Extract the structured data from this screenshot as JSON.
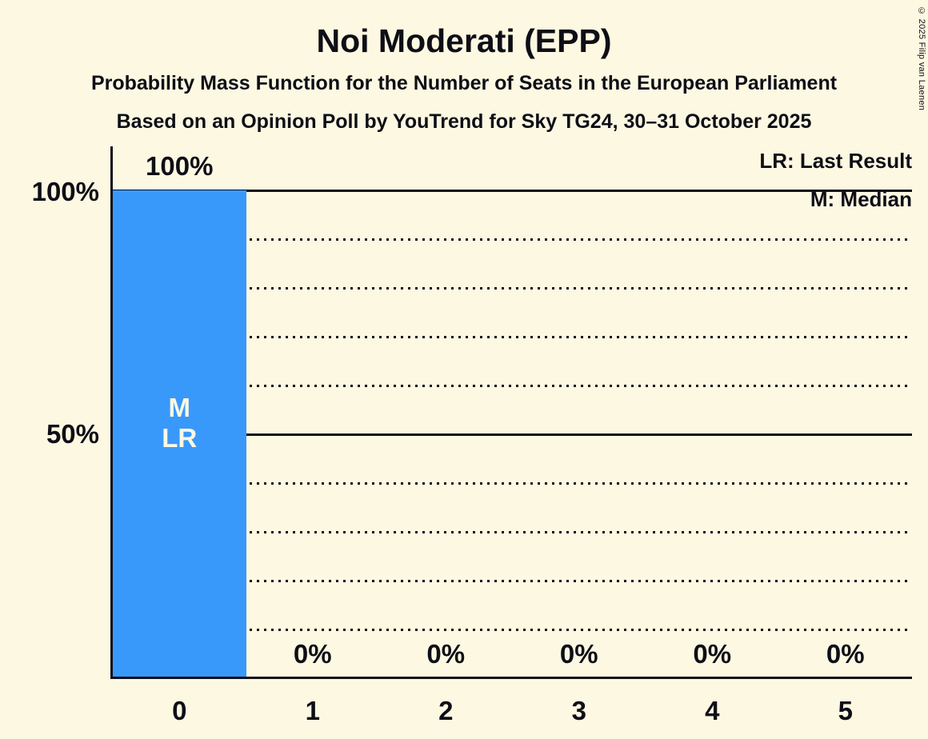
{
  "header": {
    "title": "Noi Moderati (EPP)",
    "subtitle1": "Probability Mass Function for the Number of Seats in the European Parliament",
    "subtitle2": "Based on an Opinion Poll by YouTrend for Sky TG24, 30–31 October 2025"
  },
  "copyright": "© 2025 Filip van Laenen",
  "legend": {
    "lr_label": "LR: Last Result",
    "m_label": "M: Median"
  },
  "y_axis": {
    "labels": [
      "100%",
      "50%"
    ]
  },
  "bar_annotation": {
    "lines": [
      "M",
      "LR"
    ]
  },
  "colors": {
    "background": "#FDF8E2",
    "bar": "#3999FB",
    "text": "#0E0E16",
    "bar_label": "#FDF8E2"
  },
  "chart_data": {
    "type": "bar",
    "title": "Noi Moderati (EPP)",
    "categories": [
      "0",
      "1",
      "2",
      "3",
      "4",
      "5"
    ],
    "values": [
      100,
      0,
      0,
      0,
      0,
      0
    ],
    "value_labels": [
      "100%",
      "0%",
      "0%",
      "0%",
      "0%",
      "0%"
    ],
    "ylim": [
      0,
      100
    ],
    "y_ticks_shown": [
      "100%",
      "50%"
    ],
    "gridlines": {
      "dotted_percent": [
        10,
        20,
        30,
        40,
        60,
        70,
        80,
        90
      ],
      "solid_percent": [
        50,
        100
      ]
    },
    "legend_position": "top-right",
    "median_seats": 0,
    "last_result_seats": 0,
    "annotation_bar_index": 0
  }
}
